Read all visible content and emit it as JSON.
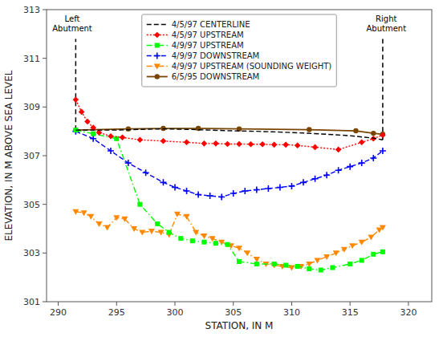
{
  "chart_data": {
    "type": "line",
    "xlabel": "STATION, IN M",
    "ylabel": "ELEVATION, IN M ABOVE SEA LEVEL",
    "xlim": [
      289,
      322
    ],
    "ylim": [
      301,
      313
    ],
    "xticks": [
      290,
      295,
      300,
      305,
      310,
      315,
      320
    ],
    "yticks": [
      301,
      303,
      305,
      307,
      309,
      311,
      313
    ],
    "grid": false,
    "legend": "upper center",
    "series": [
      {
        "name": "4/5/97 CENTERLINE",
        "color": "#000000",
        "marker": "none",
        "line_style": "dashed",
        "x": [
          291.5,
          295.0,
          297.0,
          299.0,
          301.0,
          303.0,
          305.0,
          307.0,
          309.0,
          311.0,
          313.0,
          315.0,
          317.0,
          317.8
        ],
        "values": [
          308.05,
          308.05,
          308.08,
          308.1,
          308.08,
          308.05,
          308.02,
          308.0,
          307.97,
          307.93,
          307.88,
          307.82,
          307.72,
          307.65
        ]
      },
      {
        "name": "4/5/97 UPSTREAM",
        "color": "#ff0000",
        "marker": "diamond",
        "line_style": "dotted",
        "x": [
          291.5,
          292.0,
          292.5,
          293.0,
          293.5,
          294.5,
          295.5,
          297.0,
          299.0,
          301.0,
          302.5,
          303.5,
          304.5,
          305.5,
          306.5,
          307.5,
          308.5,
          309.5,
          310.5,
          312.0,
          314.0,
          316.0,
          317.0,
          317.8
        ],
        "values": [
          309.3,
          308.8,
          308.4,
          308.15,
          307.95,
          307.8,
          307.75,
          307.65,
          307.6,
          307.55,
          307.5,
          307.5,
          307.48,
          307.48,
          307.47,
          307.47,
          307.45,
          307.45,
          307.42,
          307.35,
          307.25,
          307.55,
          307.7,
          307.85
        ]
      },
      {
        "name": "4/9/97 UPSTREAM",
        "color": "#00ff00",
        "marker": "square",
        "line_style": "dashdot",
        "x": [
          291.5,
          293.0,
          295.0,
          297.0,
          298.5,
          299.5,
          300.5,
          301.5,
          302.5,
          303.5,
          304.5,
          305.5,
          307.0,
          308.5,
          309.5,
          310.5,
          311.5,
          312.5,
          313.5,
          315.0,
          316.0,
          317.0,
          317.8
        ],
        "values": [
          308.05,
          307.9,
          307.7,
          305.0,
          304.2,
          303.85,
          303.6,
          303.5,
          303.45,
          303.4,
          303.35,
          302.65,
          302.55,
          302.55,
          302.5,
          302.45,
          302.35,
          302.3,
          302.4,
          302.55,
          302.7,
          302.95,
          303.05
        ]
      },
      {
        "name": "4/9/97 DOWNSTREAM",
        "color": "#0000ff",
        "marker": "plus",
        "line_style": "dashed",
        "x": [
          291.5,
          293.0,
          294.5,
          296.0,
          297.5,
          299.0,
          300.0,
          301.0,
          302.0,
          303.0,
          304.0,
          305.0,
          306.0,
          307.0,
          308.0,
          309.0,
          310.0,
          311.0,
          312.0,
          313.0,
          314.0,
          315.0,
          316.0,
          317.0,
          317.8
        ],
        "values": [
          308.0,
          307.7,
          307.2,
          306.7,
          306.3,
          305.9,
          305.7,
          305.55,
          305.4,
          305.35,
          305.3,
          305.45,
          305.55,
          305.6,
          305.65,
          305.7,
          305.75,
          305.9,
          306.05,
          306.2,
          306.4,
          306.55,
          306.7,
          306.9,
          307.2
        ]
      },
      {
        "name": "4/9/97 UPSTREAM (SOUNDING WEIGHT)",
        "color": "#ff8800",
        "marker": "triangle-down",
        "line_style": "dashdot",
        "x": [
          291.5,
          292.2,
          292.8,
          293.5,
          294.2,
          295.0,
          295.7,
          296.5,
          297.2,
          298.0,
          298.8,
          299.5,
          300.2,
          301.0,
          301.8,
          302.5,
          303.2,
          304.0,
          304.8,
          305.5,
          306.2,
          307.0,
          307.8,
          308.5,
          309.2,
          310.0,
          310.8,
          311.5,
          312.2,
          313.0,
          313.8,
          314.5,
          315.2,
          316.0,
          316.8,
          317.5,
          317.8
        ],
        "values": [
          304.7,
          304.65,
          304.5,
          304.2,
          304.05,
          304.45,
          304.4,
          304.0,
          303.85,
          303.9,
          303.85,
          303.75,
          304.6,
          304.5,
          303.85,
          303.7,
          303.6,
          303.45,
          303.3,
          303.2,
          303.0,
          302.75,
          302.55,
          302.5,
          302.45,
          302.4,
          302.45,
          302.55,
          302.7,
          302.85,
          303.0,
          303.15,
          303.3,
          303.45,
          303.65,
          303.95,
          304.05
        ]
      },
      {
        "name": "6/5/95 DOWNSTREAM",
        "color": "#7a4500",
        "marker": "circle",
        "line_style": "solid",
        "x": [
          291.5,
          296.0,
          299.0,
          302.0,
          305.5,
          311.5,
          315.5,
          317.0,
          317.8
        ],
        "values": [
          308.05,
          308.1,
          308.12,
          308.12,
          308.1,
          308.07,
          308.02,
          307.92,
          307.88
        ]
      }
    ],
    "vertical_lines": [
      {
        "x": 291.5,
        "y_start": 308.05,
        "y_end": 311.8
      },
      {
        "x": 317.8,
        "y_start": 307.65,
        "y_end": 311.8
      }
    ],
    "annotations": [
      {
        "text": "Left\nAbutment",
        "x": 291.2,
        "y": 312.8
      },
      {
        "text": "Right\nAbutment",
        "x": 318.1,
        "y": 312.8
      }
    ]
  }
}
